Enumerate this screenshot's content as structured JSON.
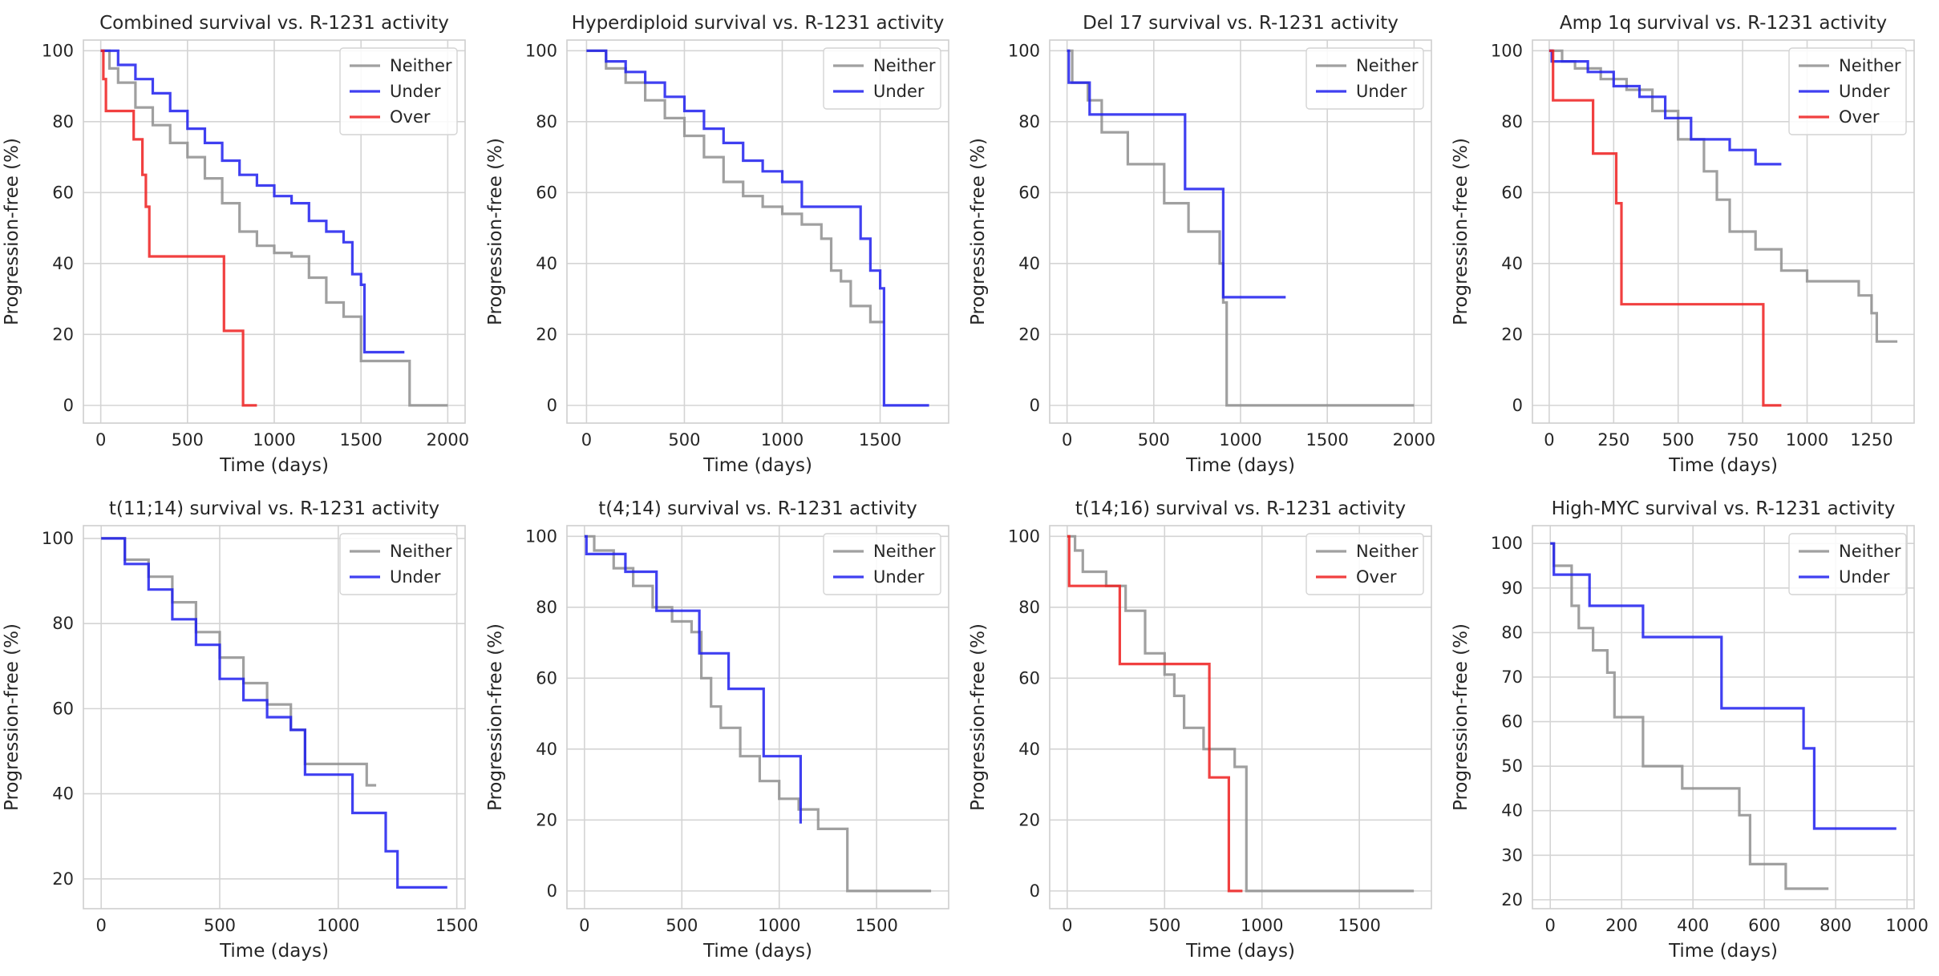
{
  "colors": {
    "Neither": "#8f8f8f",
    "Under": "#1f1fef",
    "Over": "#ef1f1f"
  },
  "chart_data": [
    {
      "type": "line",
      "title": "Combined survival vs. R-1231 activity",
      "xlabel": "Time (days)",
      "ylabel": "Progression-free (%)",
      "xlim": [
        -100,
        2100
      ],
      "ylim": [
        -5,
        103
      ],
      "xticks": [
        0,
        500,
        1000,
        1500,
        2000
      ],
      "yticks": [
        0,
        20,
        40,
        60,
        80,
        100
      ],
      "xtick_labels": [
        "0",
        "500",
        "1000",
        "1500",
        "2000"
      ],
      "ytick_labels": [
        "0",
        "20",
        "40",
        "60",
        "80",
        "100"
      ],
      "legend": "top-right",
      "series": [
        {
          "name": "Neither",
          "x": [
            0,
            50,
            100,
            200,
            300,
            400,
            500,
            600,
            700,
            800,
            900,
            1000,
            1100,
            1200,
            1300,
            1400,
            1500,
            1780,
            2000
          ],
          "y": [
            100,
            95,
            91,
            84,
            79,
            74,
            70,
            64,
            57,
            49,
            45,
            43,
            42,
            36,
            29,
            25,
            12.5,
            0,
            0
          ]
        },
        {
          "name": "Under",
          "x": [
            0,
            100,
            200,
            300,
            400,
            500,
            600,
            700,
            800,
            900,
            1000,
            1100,
            1200,
            1300,
            1400,
            1450,
            1500,
            1520,
            1750
          ],
          "y": [
            100,
            96,
            92,
            88,
            83,
            78,
            74,
            69,
            65,
            62,
            59,
            57,
            52,
            49,
            46,
            37,
            34,
            15,
            15
          ]
        },
        {
          "name": "Over",
          "x": [
            0,
            15,
            30,
            190,
            240,
            260,
            280,
            710,
            820,
            900
          ],
          "y": [
            100,
            92,
            83,
            75,
            65,
            56,
            42,
            21,
            0,
            0
          ]
        }
      ]
    },
    {
      "type": "line",
      "title": "Hyperdiploid survival vs. R-1231 activity",
      "xlabel": "Time (days)",
      "ylabel": "Progression-free (%)",
      "xlim": [
        -100,
        1850
      ],
      "ylim": [
        -5,
        103
      ],
      "xticks": [
        0,
        500,
        1000,
        1500
      ],
      "yticks": [
        0,
        20,
        40,
        60,
        80,
        100
      ],
      "xtick_labels": [
        "0",
        "500",
        "1000",
        "1500"
      ],
      "ytick_labels": [
        "0",
        "20",
        "40",
        "60",
        "80",
        "100"
      ],
      "legend": "top-right",
      "series": [
        {
          "name": "Neither",
          "x": [
            0,
            100,
            200,
            300,
            400,
            500,
            600,
            700,
            800,
            900,
            1000,
            1100,
            1200,
            1250,
            1300,
            1350,
            1450,
            1520
          ],
          "y": [
            100,
            95,
            91,
            86,
            81,
            76,
            70,
            63,
            59,
            56,
            54,
            51,
            47,
            38,
            35,
            28,
            23.5,
            23.5
          ]
        },
        {
          "name": "Under",
          "x": [
            0,
            100,
            200,
            300,
            400,
            500,
            600,
            700,
            800,
            900,
            1000,
            1100,
            1200,
            1300,
            1400,
            1450,
            1500,
            1520,
            1750
          ],
          "y": [
            100,
            97,
            94,
            91,
            87,
            83,
            78,
            74,
            69,
            66,
            63,
            56,
            56,
            56,
            47,
            38,
            33,
            0,
            0
          ]
        }
      ]
    },
    {
      "type": "line",
      "title": "Del 17 survival vs. R-1231 activity",
      "xlabel": "Time (days)",
      "ylabel": "Progression-free (%)",
      "xlim": [
        -100,
        2100
      ],
      "ylim": [
        -5,
        103
      ],
      "xticks": [
        0,
        500,
        1000,
        1500,
        2000
      ],
      "yticks": [
        0,
        20,
        40,
        60,
        80,
        100
      ],
      "xtick_labels": [
        "0",
        "500",
        "1000",
        "1500",
        "2000"
      ],
      "ytick_labels": [
        "0",
        "20",
        "40",
        "60",
        "80",
        "100"
      ],
      "legend": "top-right",
      "series": [
        {
          "name": "Neither",
          "x": [
            0,
            30,
            120,
            200,
            350,
            560,
            700,
            880,
            900,
            920,
            2000
          ],
          "y": [
            100,
            91,
            86,
            77,
            68,
            57,
            49,
            40,
            29,
            0,
            0
          ]
        },
        {
          "name": "Under",
          "x": [
            0,
            10,
            130,
            680,
            900,
            1260
          ],
          "y": [
            100,
            91,
            82,
            61,
            30.5,
            30.5
          ]
        }
      ]
    },
    {
      "type": "line",
      "title": "Amp 1q survival vs. R-1231 activity",
      "xlabel": "Time (days)",
      "ylabel": "Progression-free (%)",
      "xlim": [
        -65,
        1415
      ],
      "ylim": [
        -5,
        103
      ],
      "xticks": [
        0,
        250,
        500,
        750,
        1000,
        1250
      ],
      "yticks": [
        0,
        20,
        40,
        60,
        80,
        100
      ],
      "xtick_labels": [
        "0",
        "250",
        "500",
        "750",
        "1000",
        "1250"
      ],
      "ytick_labels": [
        "0",
        "20",
        "40",
        "60",
        "80",
        "100"
      ],
      "legend": "top-right",
      "series": [
        {
          "name": "Neither",
          "x": [
            0,
            50,
            100,
            200,
            300,
            400,
            500,
            600,
            650,
            700,
            800,
            900,
            1000,
            1100,
            1200,
            1250,
            1270,
            1350
          ],
          "y": [
            100,
            97,
            95,
            92,
            89,
            83,
            75,
            66,
            58,
            49,
            44,
            38,
            35,
            35,
            31,
            26,
            18,
            18
          ]
        },
        {
          "name": "Under",
          "x": [
            0,
            10,
            150,
            250,
            350,
            450,
            550,
            700,
            750,
            800,
            900
          ],
          "y": [
            100,
            97,
            94,
            90,
            87,
            81,
            75,
            72,
            72,
            68,
            68
          ]
        },
        {
          "name": "Over",
          "x": [
            0,
            15,
            170,
            260,
            280,
            830,
            900
          ],
          "y": [
            100,
            86,
            71,
            57,
            28.5,
            0,
            0
          ]
        }
      ]
    },
    {
      "type": "line",
      "title": "t(11;14) survival vs. R-1231 activity",
      "xlabel": "Time (days)",
      "ylabel": "Progression-free (%)",
      "xlim": [
        -75,
        1535
      ],
      "ylim": [
        13,
        103
      ],
      "xticks": [
        0,
        500,
        1000,
        1500
      ],
      "yticks": [
        20,
        40,
        60,
        80,
        100
      ],
      "xtick_labels": [
        "0",
        "500",
        "1000",
        "1500"
      ],
      "ytick_labels": [
        "20",
        "40",
        "60",
        "80",
        "100"
      ],
      "legend": "top-right",
      "series": [
        {
          "name": "Neither",
          "x": [
            0,
            100,
            200,
            300,
            400,
            500,
            600,
            700,
            800,
            860,
            1120,
            1160
          ],
          "y": [
            100,
            95,
            91,
            85,
            78,
            72,
            66,
            61,
            55,
            47,
            42,
            42
          ]
        },
        {
          "name": "Under",
          "x": [
            0,
            100,
            200,
            300,
            400,
            500,
            600,
            700,
            800,
            860,
            1060,
            1200,
            1250,
            1460
          ],
          "y": [
            100,
            94,
            88,
            81,
            75,
            67,
            62,
            58,
            55,
            44.5,
            35.5,
            26.5,
            18,
            18
          ]
        }
      ]
    },
    {
      "type": "line",
      "title": "t(4;14) survival vs. R-1231 activity",
      "xlabel": "Time (days)",
      "ylabel": "Progression-free (%)",
      "xlim": [
        -90,
        1870
      ],
      "ylim": [
        -5,
        103
      ],
      "xticks": [
        0,
        500,
        1000,
        1500
      ],
      "yticks": [
        0,
        20,
        40,
        60,
        80,
        100
      ],
      "xtick_labels": [
        "0",
        "500",
        "1000",
        "1500"
      ],
      "ytick_labels": [
        "0",
        "20",
        "40",
        "60",
        "80",
        "100"
      ],
      "legend": "top-right",
      "series": [
        {
          "name": "Neither",
          "x": [
            0,
            50,
            150,
            250,
            350,
            450,
            550,
            600,
            650,
            700,
            800,
            900,
            1000,
            1100,
            1200,
            1350,
            1780
          ],
          "y": [
            100,
            96,
            91,
            86,
            80,
            76,
            73,
            60,
            52,
            46,
            38,
            31,
            26,
            23,
            17.5,
            0,
            0
          ]
        },
        {
          "name": "Under",
          "x": [
            0,
            10,
            210,
            370,
            590,
            740,
            920,
            1110
          ],
          "y": [
            100,
            95,
            90,
            79,
            67,
            57,
            38,
            19
          ]
        }
      ]
    },
    {
      "type": "line",
      "title": "t(14;16) survival vs. R-1231 activity",
      "xlabel": "Time (days)",
      "ylabel": "Progression-free (%)",
      "xlim": [
        -90,
        1870
      ],
      "ylim": [
        -5,
        103
      ],
      "xticks": [
        0,
        500,
        1000,
        1500
      ],
      "yticks": [
        0,
        20,
        40,
        60,
        80,
        100
      ],
      "xtick_labels": [
        "0",
        "500",
        "1000",
        "1500"
      ],
      "ytick_labels": [
        "0",
        "20",
        "40",
        "60",
        "80",
        "100"
      ],
      "legend": "top-right",
      "series": [
        {
          "name": "Neither",
          "x": [
            0,
            40,
            80,
            200,
            300,
            400,
            500,
            550,
            600,
            700,
            860,
            900,
            920,
            1780
          ],
          "y": [
            100,
            96,
            90,
            86,
            79,
            67,
            61,
            55,
            46,
            40,
            35,
            35,
            0,
            0
          ]
        },
        {
          "name": "Over",
          "x": [
            0,
            10,
            270,
            730,
            830,
            900
          ],
          "y": [
            100,
            86,
            64,
            32,
            0,
            0
          ]
        }
      ]
    },
    {
      "type": "line",
      "title": "High-MYC survival vs. R-1231 activity",
      "xlabel": "Time (days)",
      "ylabel": "Progression-free (%)",
      "xlim": [
        -50,
        1020
      ],
      "ylim": [
        18,
        104
      ],
      "xticks": [
        0,
        200,
        400,
        600,
        800,
        1000
      ],
      "yticks": [
        20,
        30,
        40,
        50,
        60,
        70,
        80,
        90,
        100
      ],
      "xtick_labels": [
        "0",
        "200",
        "400",
        "600",
        "800",
        "1000"
      ],
      "ytick_labels": [
        "20",
        "30",
        "40",
        "50",
        "60",
        "70",
        "80",
        "90",
        "100"
      ],
      "legend": "top-right",
      "series": [
        {
          "name": "Neither",
          "x": [
            0,
            10,
            60,
            80,
            120,
            160,
            180,
            260,
            370,
            530,
            560,
            660,
            780
          ],
          "y": [
            100,
            95,
            86,
            81,
            76,
            71,
            61,
            50,
            45,
            39,
            28,
            22.5,
            22.5
          ]
        },
        {
          "name": "Under",
          "x": [
            0,
            10,
            110,
            260,
            480,
            710,
            740,
            970
          ],
          "y": [
            100,
            93,
            86,
            79,
            63,
            54,
            36,
            36
          ]
        }
      ]
    }
  ]
}
